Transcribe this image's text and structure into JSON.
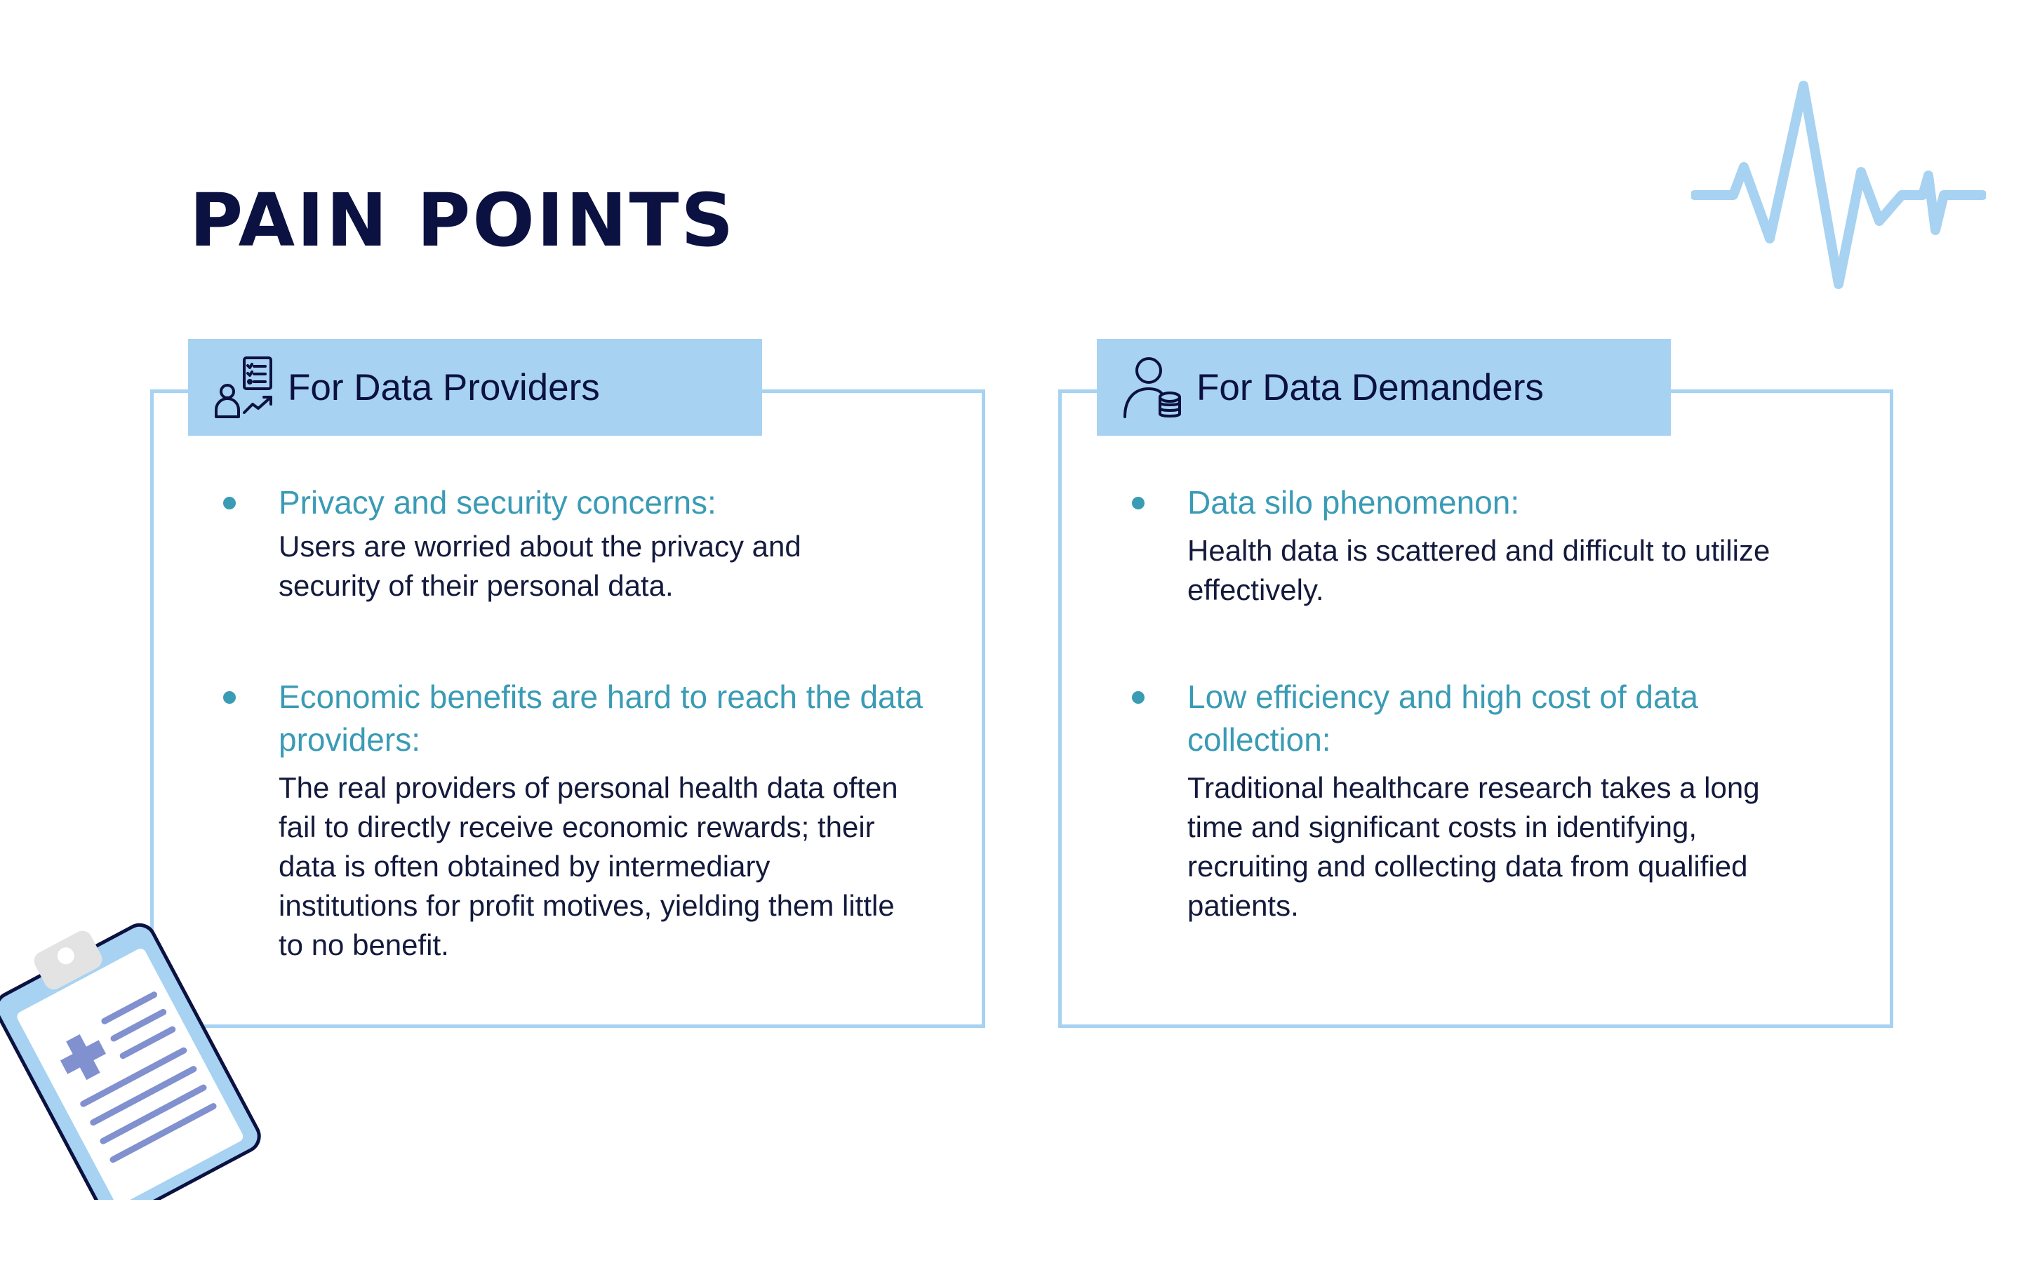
{
  "title": "PAIN POINTS",
  "colors": {
    "title": "#0b1140",
    "accent_blue": "#a7d2f2",
    "heading_teal": "#3a9bb5",
    "body_text": "#131a3c"
  },
  "left_card": {
    "header": "For Data Providers",
    "icon": "person-checklist-chart-icon",
    "points": [
      {
        "heading": "Privacy and security concerns:",
        "description": "Users are worried about the privacy and security of their personal data."
      },
      {
        "heading": "Economic benefits are hard to reach the data providers:",
        "description": "The real providers of personal health data often fail to directly receive economic rewards; their data is often obtained by intermediary institutions for profit motives, yielding them little to no benefit."
      }
    ]
  },
  "right_card": {
    "header": "For Data Demanders",
    "icon": "person-database-icon",
    "points": [
      {
        "heading": "Data silo phenomenon:",
        "description": "Health data is scattered and difficult to utilize effectively."
      },
      {
        "heading": "Low efficiency and high cost of data collection:",
        "description": "Traditional healthcare research takes a long time and significant costs in identifying, recruiting and collecting data from qualified patients."
      }
    ]
  },
  "decorations": [
    "heartbeat-line-icon",
    "medical-clipboard-icon"
  ]
}
